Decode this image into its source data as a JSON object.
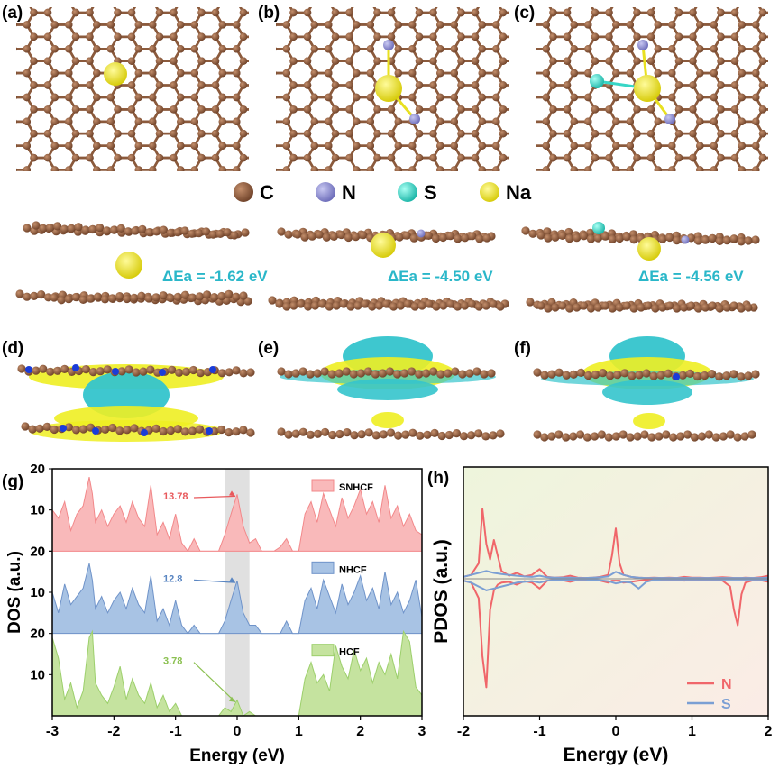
{
  "panels": {
    "a": "(a)",
    "b": "(b)",
    "c": "(c)",
    "d": "(d)",
    "e": "(e)",
    "f": "(f)",
    "g": "(g)",
    "h": "(h)"
  },
  "legend": [
    {
      "label": "C",
      "color": "#8b5a3c"
    },
    {
      "label": "N",
      "color": "#8c8cd9"
    },
    {
      "label": "S",
      "color": "#37d6c6"
    },
    {
      "label": "Na",
      "color": "#e8e020"
    }
  ],
  "energies": [
    "ΔEa = -1.62 eV",
    "ΔEa = -4.50 eV",
    "ΔEa = -4.56 eV"
  ],
  "colors": {
    "carbon": "#8b5a3c",
    "nitrogen": "#8c8cd9",
    "sulfur": "#37d6c6",
    "sodium": "#e8e020",
    "cyan_text": "#2ab7c9"
  },
  "chart_data": [
    {
      "id": "g",
      "type": "area",
      "xlabel": "Energy (eV)",
      "ylabel": "DOS (a.u.)",
      "xlim": [
        -3,
        3
      ],
      "xticks": [
        "-3",
        "-2",
        "-1",
        "0",
        "1",
        "2",
        "3"
      ],
      "yticks": [
        "0",
        "10",
        "20"
      ],
      "highlight_band": [
        -0.2,
        0.2
      ],
      "series": [
        {
          "name": "SNHCF",
          "color": "#f2888a",
          "fill": "#f9b9ba",
          "annotation": "13.78",
          "annotation_color": "#e8595c",
          "x": [
            -3,
            -2.9,
            -2.8,
            -2.7,
            -2.6,
            -2.5,
            -2.4,
            -2.35,
            -2.3,
            -2.2,
            -2.1,
            -2.0,
            -1.9,
            -1.8,
            -1.7,
            -1.6,
            -1.5,
            -1.4,
            -1.3,
            -1.2,
            -1.1,
            -1.0,
            -0.9,
            -0.8,
            -0.7,
            -0.6,
            -0.5,
            -0.4,
            -0.3,
            -0.2,
            -0.1,
            0,
            0.1,
            0.2,
            0.3,
            0.4,
            0.5,
            0.6,
            0.7,
            0.8,
            0.9,
            1.0,
            1.1,
            1.2,
            1.3,
            1.4,
            1.5,
            1.6,
            1.7,
            1.8,
            1.9,
            2.0,
            2.1,
            2.2,
            2.3,
            2.4,
            2.5,
            2.6,
            2.7,
            2.8,
            2.9,
            3.0
          ],
          "y": [
            10,
            8,
            12,
            5,
            9,
            11,
            18,
            14,
            7,
            10,
            6,
            9,
            11,
            7,
            12,
            8,
            6,
            16,
            4,
            7,
            3,
            9,
            2,
            0,
            3,
            0,
            0,
            0,
            0,
            4,
            9,
            13.78,
            6,
            2,
            3,
            0,
            0,
            0,
            1,
            3,
            0,
            0,
            9,
            12,
            7,
            14,
            10,
            6,
            13,
            8,
            11,
            15,
            9,
            12,
            7,
            16,
            8,
            11,
            6,
            9,
            5,
            4
          ]
        },
        {
          "name": "NHCF",
          "color": "#6f93c9",
          "fill": "#a8c3e4",
          "annotation": "12.8",
          "annotation_color": "#5a86c2",
          "x": [
            -3,
            -2.9,
            -2.8,
            -2.7,
            -2.6,
            -2.5,
            -2.4,
            -2.35,
            -2.3,
            -2.2,
            -2.1,
            -2.0,
            -1.9,
            -1.8,
            -1.7,
            -1.6,
            -1.5,
            -1.4,
            -1.3,
            -1.2,
            -1.1,
            -1.0,
            -0.9,
            -0.8,
            -0.7,
            -0.6,
            -0.5,
            -0.4,
            -0.3,
            -0.2,
            -0.1,
            0,
            0.1,
            0.2,
            0.3,
            0.4,
            0.5,
            0.6,
            0.7,
            0.8,
            0.9,
            1.0,
            1.1,
            1.2,
            1.3,
            1.4,
            1.5,
            1.6,
            1.7,
            1.8,
            1.9,
            2.0,
            2.1,
            2.2,
            2.3,
            2.4,
            2.5,
            2.6,
            2.7,
            2.8,
            2.9,
            3.0
          ],
          "y": [
            10,
            5,
            12,
            7,
            9,
            11,
            17,
            13,
            6,
            9,
            5,
            8,
            10,
            6,
            11,
            7,
            5,
            14,
            3,
            6,
            2,
            8,
            2,
            0,
            2,
            0,
            0,
            0,
            0,
            3,
            8,
            12.8,
            5,
            2,
            2,
            0,
            0,
            0,
            0,
            3,
            0,
            0,
            8,
            11,
            6,
            13,
            9,
            5,
            12,
            7,
            10,
            14,
            8,
            11,
            6,
            15,
            7,
            10,
            5,
            8,
            13,
            4
          ]
        },
        {
          "name": "HCF",
          "color": "#9ccf6b",
          "fill": "#c5e39f",
          "annotation": "3.78",
          "annotation_color": "#8cc152",
          "x": [
            -3,
            -2.9,
            -2.8,
            -2.7,
            -2.6,
            -2.5,
            -2.4,
            -2.35,
            -2.3,
            -2.2,
            -2.1,
            -2.0,
            -1.9,
            -1.8,
            -1.7,
            -1.6,
            -1.5,
            -1.4,
            -1.3,
            -1.2,
            -1.1,
            -1.0,
            -0.9,
            -0.8,
            -0.7,
            -0.6,
            -0.5,
            -0.4,
            -0.3,
            -0.2,
            -0.1,
            0,
            0.1,
            0.2,
            0.3,
            0.4,
            0.5,
            0.6,
            0.7,
            0.8,
            0.9,
            1.0,
            1.1,
            1.2,
            1.3,
            1.4,
            1.5,
            1.6,
            1.7,
            1.8,
            1.9,
            2.0,
            2.1,
            2.2,
            2.3,
            2.4,
            2.5,
            2.6,
            2.7,
            2.8,
            2.9,
            3.0
          ],
          "y": [
            19,
            14,
            4,
            8,
            2,
            6,
            19,
            21,
            8,
            5,
            3,
            7,
            12,
            4,
            9,
            5,
            3,
            8,
            2,
            5,
            1,
            3,
            0,
            0,
            0,
            0,
            0,
            0,
            0,
            2,
            1,
            3.78,
            0,
            1,
            0,
            0,
            0,
            0,
            0,
            0,
            0,
            0,
            9,
            13,
            8,
            10,
            6,
            17,
            12,
            9,
            16,
            11,
            14,
            8,
            13,
            10,
            15,
            9,
            22,
            18,
            7,
            5
          ]
        }
      ]
    },
    {
      "id": "h",
      "type": "line",
      "xlabel": "Energy (eV)",
      "ylabel": "PDOS (a.u.)",
      "xlim": [
        -2,
        2
      ],
      "xticks": [
        "-2",
        "-1",
        "0",
        "1",
        "2"
      ],
      "series": [
        {
          "name": "N",
          "color": "#f0666a",
          "x": [
            -2,
            -1.9,
            -1.8,
            -1.75,
            -1.7,
            -1.65,
            -1.6,
            -1.55,
            -1.5,
            -1.4,
            -1.3,
            -1.2,
            -1.1,
            -1.0,
            -0.9,
            -0.8,
            -0.7,
            -0.6,
            -0.5,
            -0.4,
            -0.3,
            -0.2,
            -0.1,
            -0.05,
            0,
            0.05,
            0.1,
            0.2,
            0.3,
            0.4,
            0.5,
            0.6,
            0.7,
            0.8,
            0.9,
            1.0,
            1.1,
            1.2,
            1.3,
            1.4,
            1.5,
            1.55,
            1.6,
            1.65,
            1.7,
            1.8,
            1.9,
            2.0
          ],
          "up": [
            0.5,
            1,
            4,
            18,
            9,
            5,
            10,
            6,
            2,
            0.8,
            1.5,
            0.6,
            1,
            2.5,
            0.5,
            0.3,
            0.4,
            0.8,
            0.3,
            0.2,
            0.3,
            0.5,
            1,
            6,
            13,
            4,
            1,
            0.5,
            0.3,
            0.2,
            0.3,
            0.2,
            0.3,
            0.2,
            0.5,
            0.3,
            0.3,
            0.2,
            0.3,
            0.4,
            0.3,
            0.2,
            0.2,
            0.2,
            0.3,
            0.2,
            0.4,
            0.8
          ],
          "down": [
            -0.5,
            -1,
            -5,
            -20,
            -28,
            -8,
            -3,
            -1.5,
            -1,
            -0.8,
            -1.5,
            -0.6,
            -1,
            -2.5,
            -0.5,
            -0.3,
            -0.4,
            -0.8,
            -0.3,
            -0.2,
            -0.3,
            -0.5,
            -1,
            -0.5,
            -0.5,
            -0.5,
            -1,
            -0.8,
            -0.5,
            -0.3,
            -0.3,
            -0.2,
            -0.3,
            -0.2,
            -0.5,
            -0.3,
            -0.3,
            -0.2,
            -0.3,
            -0.5,
            -2,
            -8,
            -12,
            -4,
            -1,
            -0.4,
            -0.4,
            -0.8
          ]
        },
        {
          "name": "S",
          "color": "#7b9fd4",
          "x": [
            -2,
            -1.9,
            -1.8,
            -1.7,
            -1.6,
            -1.5,
            -1.4,
            -1.3,
            -1.2,
            -1.1,
            -1.0,
            -0.9,
            -0.8,
            -0.7,
            -0.6,
            -0.5,
            -0.4,
            -0.3,
            -0.2,
            -0.1,
            0,
            0.1,
            0.2,
            0.3,
            0.4,
            0.5,
            0.6,
            0.7,
            0.8,
            0.9,
            1.0,
            1.1,
            1.2,
            1.3,
            1.4,
            1.5,
            1.6,
            1.7,
            1.8,
            1.9,
            2.0
          ],
          "up": [
            0.5,
            1,
            1.5,
            2,
            1.5,
            1.2,
            1,
            0.8,
            0.6,
            0.5,
            0.8,
            0.4,
            0.3,
            0.3,
            0.3,
            0.2,
            0.2,
            0.3,
            0.4,
            0.6,
            1.8,
            1,
            0.5,
            0.3,
            0.2,
            0.2,
            0.2,
            0.2,
            0.2,
            0.2,
            0.2,
            0.2,
            0.2,
            0.2,
            0.2,
            0.2,
            0.2,
            0.2,
            0.2,
            0.2,
            0.3
          ],
          "down": [
            -0.5,
            -1,
            -2,
            -3,
            -2.5,
            -2,
            -1.5,
            -1,
            -0.8,
            -0.6,
            -1,
            -0.5,
            -0.3,
            -0.3,
            -0.3,
            -0.2,
            -0.2,
            -0.3,
            -0.4,
            -0.6,
            -1.2,
            -0.8,
            -1,
            -2.5,
            -0.8,
            -0.3,
            -0.2,
            -0.2,
            -0.2,
            -0.2,
            -0.2,
            -0.2,
            -0.2,
            -0.2,
            -0.2,
            -0.2,
            -0.2,
            -0.2,
            -0.2,
            -0.2,
            -0.3
          ]
        }
      ]
    }
  ]
}
